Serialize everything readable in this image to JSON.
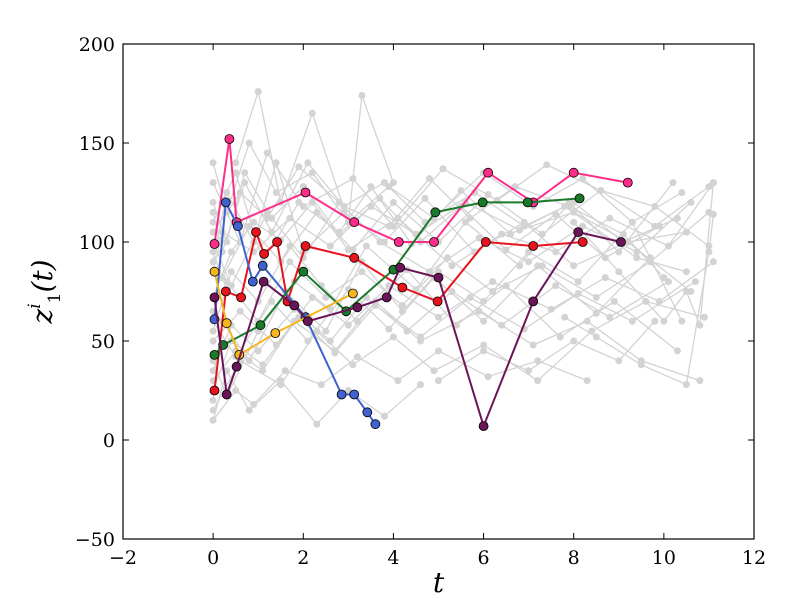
{
  "chart_data": {
    "type": "line",
    "xlabel": "t",
    "ylabel_main": "z",
    "ylabel_sup": "i",
    "ylabel_sub": "1",
    "ylabel_arg": "(t)",
    "xlim": [
      -2,
      12
    ],
    "ylim": [
      -50,
      200
    ],
    "xticks": [
      "−2",
      "0",
      "2",
      "4",
      "6",
      "8",
      "10",
      "12"
    ],
    "yticks": [
      "−50",
      "0",
      "50",
      "100",
      "150",
      "200"
    ],
    "background_color": "#d3d3d3",
    "background_series": [
      {
        "x": [
          0,
          0.4,
          0.9,
          1.5,
          2.2,
          3.0,
          4.1,
          5.3,
          6.4,
          7.6,
          8.8,
          10.1,
          11.1
        ],
        "y": [
          72,
          95,
          110,
          101,
          120,
          96,
          112,
          88,
          104,
          95,
          112,
          98,
          130
        ]
      },
      {
        "x": [
          0,
          0.3,
          1.0,
          1.8,
          2.6,
          3.4,
          4.5,
          5.6,
          6.8,
          7.9,
          9.0,
          10.2
        ],
        "y": [
          40,
          22,
          55,
          80,
          66,
          98,
          76,
          110,
          88,
          120,
          95,
          130
        ]
      },
      {
        "x": [
          0,
          0.5,
          1.1,
          1.9,
          2.8,
          3.5,
          4.4,
          5.5,
          6.6,
          7.8,
          9.4,
          10.5
        ],
        "y": [
          110,
          135,
          90,
          120,
          105,
          128,
          99,
          126,
          104,
          118,
          92,
          85
        ]
      },
      {
        "x": [
          0,
          0.2,
          0.8,
          1.6,
          2.5,
          3.3,
          4.2,
          5.0,
          6.0,
          7.0,
          8.1,
          9.3,
          10.4
        ],
        "y": [
          20,
          60,
          40,
          75,
          55,
          90,
          65,
          85,
          70,
          95,
          80,
          110,
          60
        ]
      },
      {
        "x": [
          0,
          0.6,
          1.2,
          2.0,
          3.1,
          4.0,
          5.1,
          6.3,
          7.4,
          8.6,
          9.8,
          11.0
        ],
        "y": [
          130,
          100,
          145,
          118,
          132,
          108,
          137,
          121,
          139,
          126,
          118,
          98
        ]
      },
      {
        "x": [
          0,
          0.4,
          1.0,
          1.7,
          2.4,
          3.2,
          4.3,
          5.4,
          6.5,
          7.7,
          8.9,
          10.3
        ],
        "y": [
          55,
          85,
          70,
          98,
          78,
          60,
          86,
          58,
          78,
          52,
          70,
          45
        ]
      },
      {
        "x": [
          0,
          0.3,
          0.9,
          1.4,
          2.0,
          2.9,
          3.8,
          4.7,
          5.8,
          6.9,
          8.0,
          9.2,
          10.6
        ],
        "y": [
          90,
          125,
          100,
          140,
          95,
          115,
          100,
          122,
          95,
          110,
          88,
          100,
          75
        ]
      },
      {
        "x": [
          0,
          0.5,
          1.1,
          1.8,
          2.7,
          3.6,
          4.6,
          5.9,
          7.1,
          8.3,
          9.5,
          10.8
        ],
        "y": [
          30,
          45,
          35,
          60,
          45,
          70,
          50,
          65,
          48,
          60,
          40,
          30
        ]
      },
      {
        "x": [
          0,
          0.2,
          0.7,
          1.3,
          2.1,
          2.9,
          3.9,
          4.8,
          5.7,
          6.7,
          7.9,
          9.1,
          10.0
        ],
        "y": [
          115,
          95,
          130,
          105,
          140,
          118,
          108,
          132,
          112,
          128,
          118,
          104,
          82
        ]
      },
      {
        "x": [
          0,
          0.6,
          1.5,
          2.3,
          3.1,
          4.0,
          4.9,
          6.0,
          7.2,
          8.4,
          9.6,
          10.9
        ],
        "y": [
          15,
          40,
          28,
          55,
          38,
          52,
          35,
          48,
          30,
          55,
          70,
          62
        ]
      },
      {
        "x": [
          0,
          0.3,
          1.0,
          1.7,
          2.5,
          3.3,
          4.2,
          5.2,
          6.2,
          7.3,
          8.5,
          9.7,
          11.0
        ],
        "y": [
          65,
          80,
          60,
          90,
          72,
          85,
          68,
          92,
          75,
          88,
          72,
          90,
          115
        ]
      },
      {
        "x": [
          0,
          0.4,
          1.2,
          2.0,
          2.8,
          3.7,
          4.8,
          5.9,
          7.0,
          8.2,
          9.4,
          10.6
        ],
        "y": [
          100,
          78,
          115,
          92,
          120,
          100,
          85,
          102,
          90,
          108,
          95,
          120
        ]
      },
      {
        "x": [
          0,
          0.5,
          0.9,
          1.6,
          2.4,
          3.2,
          4.1,
          5.0,
          6.1,
          7.2,
          8.3
        ],
        "y": [
          10,
          25,
          18,
          35,
          28,
          42,
          30,
          45,
          32,
          40,
          30
        ]
      },
      {
        "x": [
          0,
          0.3,
          0.8,
          1.4,
          2.2,
          3.0,
          3.9,
          4.9,
          6.0,
          7.1,
          8.2,
          9.3,
          10.4
        ],
        "y": [
          140,
          115,
          150,
          125,
          135,
          110,
          128,
          112,
          135,
          118,
          132,
          110,
          125
        ]
      },
      {
        "x": [
          0,
          0.6,
          1.4,
          2.2,
          3.0,
          3.9,
          5.0,
          6.2,
          7.5,
          8.7,
          9.9,
          11.1
        ],
        "y": [
          50,
          65,
          48,
          72,
          58,
          78,
          62,
          80,
          66,
          82,
          70,
          90
        ]
      },
      {
        "x": [
          0,
          0.2,
          0.9,
          1.7,
          2.6,
          3.5,
          4.5,
          5.6,
          6.8,
          8.0,
          9.2,
          10.5
        ],
        "y": [
          85,
          105,
          95,
          112,
          98,
          118,
          104,
          120,
          106,
          115,
          100,
          105
        ]
      },
      {
        "x": [
          0,
          0.4,
          1.1,
          1.9,
          2.7,
          3.6,
          4.6,
          5.7,
          6.9,
          8.1,
          9.3,
          10.7
        ],
        "y": [
          25,
          50,
          38,
          62,
          44,
          68,
          52,
          72,
          56,
          74,
          60,
          80
        ]
      },
      {
        "x": [
          0,
          0.3,
          0.7,
          1.3,
          2.0,
          2.8,
          3.7,
          4.6,
          5.5,
          6.5,
          7.6,
          8.7,
          9.9
        ],
        "y": [
          120,
          100,
          135,
          112,
          128,
          104,
          122,
          100,
          118,
          96,
          114,
          92,
          108
        ]
      },
      {
        "x": [
          0,
          0.5,
          1.3,
          2.1,
          3.0,
          3.9,
          4.9,
          6.0,
          7.2,
          8.5,
          9.7
        ],
        "y": [
          60,
          42,
          70,
          50,
          76,
          56,
          82,
          60,
          88,
          64,
          92
        ]
      },
      {
        "x": [
          0,
          0.2,
          0.8,
          1.5,
          2.3,
          3.1,
          4.0,
          5.0,
          6.1,
          7.3,
          8.6,
          9.8,
          11.0
        ],
        "y": [
          95,
          82,
          108,
          90,
          115,
          96,
          120,
          100,
          124,
          104,
          126,
          108,
          128
        ]
      },
      {
        "x": [
          0,
          0.4,
          1.0,
          1.8,
          2.6,
          3.4,
          4.3,
          5.3,
          6.4,
          7.6,
          8.8,
          10.1
        ],
        "y": [
          35,
          58,
          45,
          66,
          50,
          72,
          55,
          75,
          58,
          78,
          62,
          80
        ]
      },
      {
        "x": [
          0,
          0.6,
          1.2,
          1.9,
          2.9,
          3.8,
          4.7,
          5.8,
          6.9,
          8.0,
          9.1,
          10.3
        ],
        "y": [
          105,
          125,
          112,
          138,
          118,
          130,
          110,
          125,
          108,
          120,
          100,
          112
        ]
      },
      {
        "x": [
          0.5,
          1.0,
          1.5,
          2.2,
          3.0,
          3.3,
          4.0
        ],
        "y": [
          140,
          176,
          120,
          165,
          110,
          174,
          130
        ]
      },
      {
        "x": [
          7.8,
          8.5,
          9.5,
          10.5,
          11.0,
          11.1
        ],
        "y": [
          62,
          52,
          38,
          28,
          95,
          114
        ]
      },
      {
        "x": [
          8.0,
          9.0,
          10.0,
          10.5,
          10.8,
          11.1
        ],
        "y": [
          110,
          85,
          60,
          75,
          58,
          130
        ]
      },
      {
        "x": [
          5.0,
          6.0,
          7.0,
          8.0,
          9.0,
          9.8
        ],
        "y": [
          30,
          45,
          35,
          50,
          40,
          60
        ]
      },
      {
        "x": [
          0,
          0.3,
          0.8,
          1.5,
          2.3,
          3.0,
          3.8,
          4.6
        ],
        "y": [
          10,
          35,
          15,
          30,
          8,
          25,
          12,
          28
        ]
      }
    ],
    "series": [
      {
        "color": "#ff2d8a",
        "x": [
          0.03,
          0.36,
          0.52,
          2.05,
          3.13,
          4.12,
          4.9,
          6.1,
          7.1,
          8.0,
          9.2
        ],
        "y": [
          99,
          152,
          110,
          125,
          110,
          100,
          100,
          135,
          120,
          135,
          130
        ]
      },
      {
        "color": "#e8131c",
        "x": [
          0.03,
          0.28,
          0.62,
          0.95,
          1.13,
          1.42,
          1.65,
          2.05,
          3.13,
          4.2,
          4.98,
          6.05,
          7.1,
          8.2
        ],
        "y": [
          25,
          75,
          72,
          105,
          94,
          100,
          70,
          98,
          92,
          77,
          70,
          100,
          98,
          100
        ]
      },
      {
        "color": "#3f62cf",
        "x": [
          0.03,
          0.28,
          0.55,
          0.88,
          1.1,
          2.05,
          2.85,
          3.13,
          3.42,
          3.6
        ],
        "y": [
          61,
          120,
          108,
          80,
          88,
          62,
          23,
          23,
          14,
          8
        ]
      },
      {
        "color": "#1a7a2a",
        "x": [
          0.03,
          0.22,
          1.05,
          2.0,
          2.95,
          4.0,
          4.93,
          5.98,
          6.98,
          8.13
        ],
        "y": [
          43,
          48,
          58,
          85,
          65,
          86,
          115,
          120,
          120,
          122
        ]
      },
      {
        "color": "#f5b51d",
        "x": [
          0.03,
          0.3,
          0.58,
          1.38,
          3.1
        ],
        "y": [
          85,
          59,
          43,
          54,
          74
        ]
      },
      {
        "color": "#6b1558",
        "x": [
          0.03,
          0.3,
          0.52,
          1.12,
          1.8,
          2.1,
          3.2,
          3.85,
          4.15,
          5.0,
          6.0,
          7.1,
          8.1,
          9.05
        ],
        "y": [
          72,
          23,
          37,
          80,
          68,
          60,
          67,
          72,
          87,
          82,
          7,
          70,
          105,
          100
        ]
      }
    ]
  }
}
